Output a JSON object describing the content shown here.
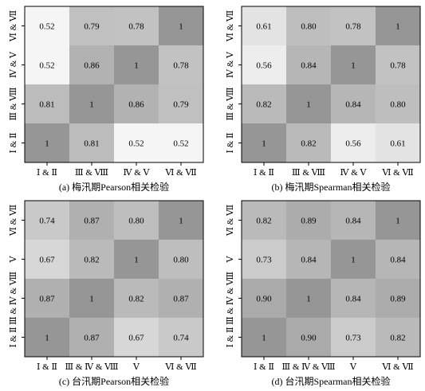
{
  "chart_data": [
    {
      "type": "heatmap",
      "caption": "(a) 梅汛期Pearson相关检验",
      "x_labels": [
        "Ⅰ & Ⅱ",
        "Ⅲ & Ⅷ",
        "Ⅳ & Ⅴ",
        "Ⅵ & Ⅶ"
      ],
      "y_labels_top_to_bottom": [
        "Ⅵ & Ⅶ",
        "Ⅳ & Ⅴ",
        "Ⅲ & Ⅷ",
        "Ⅰ & Ⅱ"
      ],
      "values": [
        [
          "0.52",
          "0.79",
          "0.78",
          "1"
        ],
        [
          "0.52",
          "0.86",
          "1",
          "0.78"
        ],
        [
          "0.81",
          "1",
          "0.86",
          "0.79"
        ],
        [
          "1",
          "0.81",
          "0.52",
          "0.52"
        ]
      ]
    },
    {
      "type": "heatmap",
      "caption": "(b) 梅汛期Spearman相关检验",
      "x_labels": [
        "Ⅰ & Ⅱ",
        "Ⅲ & Ⅷ",
        "Ⅳ & Ⅴ",
        "Ⅵ & Ⅶ"
      ],
      "y_labels_top_to_bottom": [
        "Ⅵ & Ⅶ",
        "Ⅳ & Ⅴ",
        "Ⅲ & Ⅷ",
        "Ⅰ & Ⅱ"
      ],
      "values": [
        [
          "0.61",
          "0.80",
          "0.78",
          "1"
        ],
        [
          "0.56",
          "0.84",
          "1",
          "0.78"
        ],
        [
          "0.82",
          "1",
          "0.84",
          "0.80"
        ],
        [
          "1",
          "0.82",
          "0.56",
          "0.61"
        ]
      ]
    },
    {
      "type": "heatmap",
      "caption": "(c) 台汛期Pearson相关检验",
      "x_labels": [
        "Ⅰ & Ⅱ",
        "Ⅲ & Ⅳ & Ⅷ",
        "Ⅴ",
        "Ⅵ & Ⅶ"
      ],
      "y_labels_top_to_bottom": [
        "Ⅵ & Ⅶ",
        "Ⅴ",
        "Ⅲ & Ⅳ & Ⅷ",
        "Ⅰ & Ⅱ"
      ],
      "values": [
        [
          "0.74",
          "0.87",
          "0.80",
          "1"
        ],
        [
          "0.67",
          "0.82",
          "1",
          "0.80"
        ],
        [
          "0.87",
          "1",
          "0.82",
          "0.87"
        ],
        [
          "1",
          "0.87",
          "0.67",
          "0.74"
        ]
      ]
    },
    {
      "type": "heatmap",
      "caption": "(d) 台汛期Spearman相关检验",
      "x_labels": [
        "Ⅰ & Ⅱ",
        "Ⅲ & Ⅳ & Ⅷ",
        "Ⅴ",
        "Ⅵ & Ⅶ"
      ],
      "y_labels_top_to_bottom": [
        "Ⅵ & Ⅶ",
        "Ⅴ",
        "Ⅲ & Ⅳ & Ⅷ",
        "Ⅰ & Ⅱ"
      ],
      "values": [
        [
          "0.82",
          "0.89",
          "0.84",
          "1"
        ],
        [
          "0.73",
          "0.84",
          "1",
          "0.84"
        ],
        [
          "0.90",
          "1",
          "0.84",
          "0.89"
        ],
        [
          "1",
          "0.90",
          "0.73",
          "0.82"
        ]
      ]
    }
  ]
}
